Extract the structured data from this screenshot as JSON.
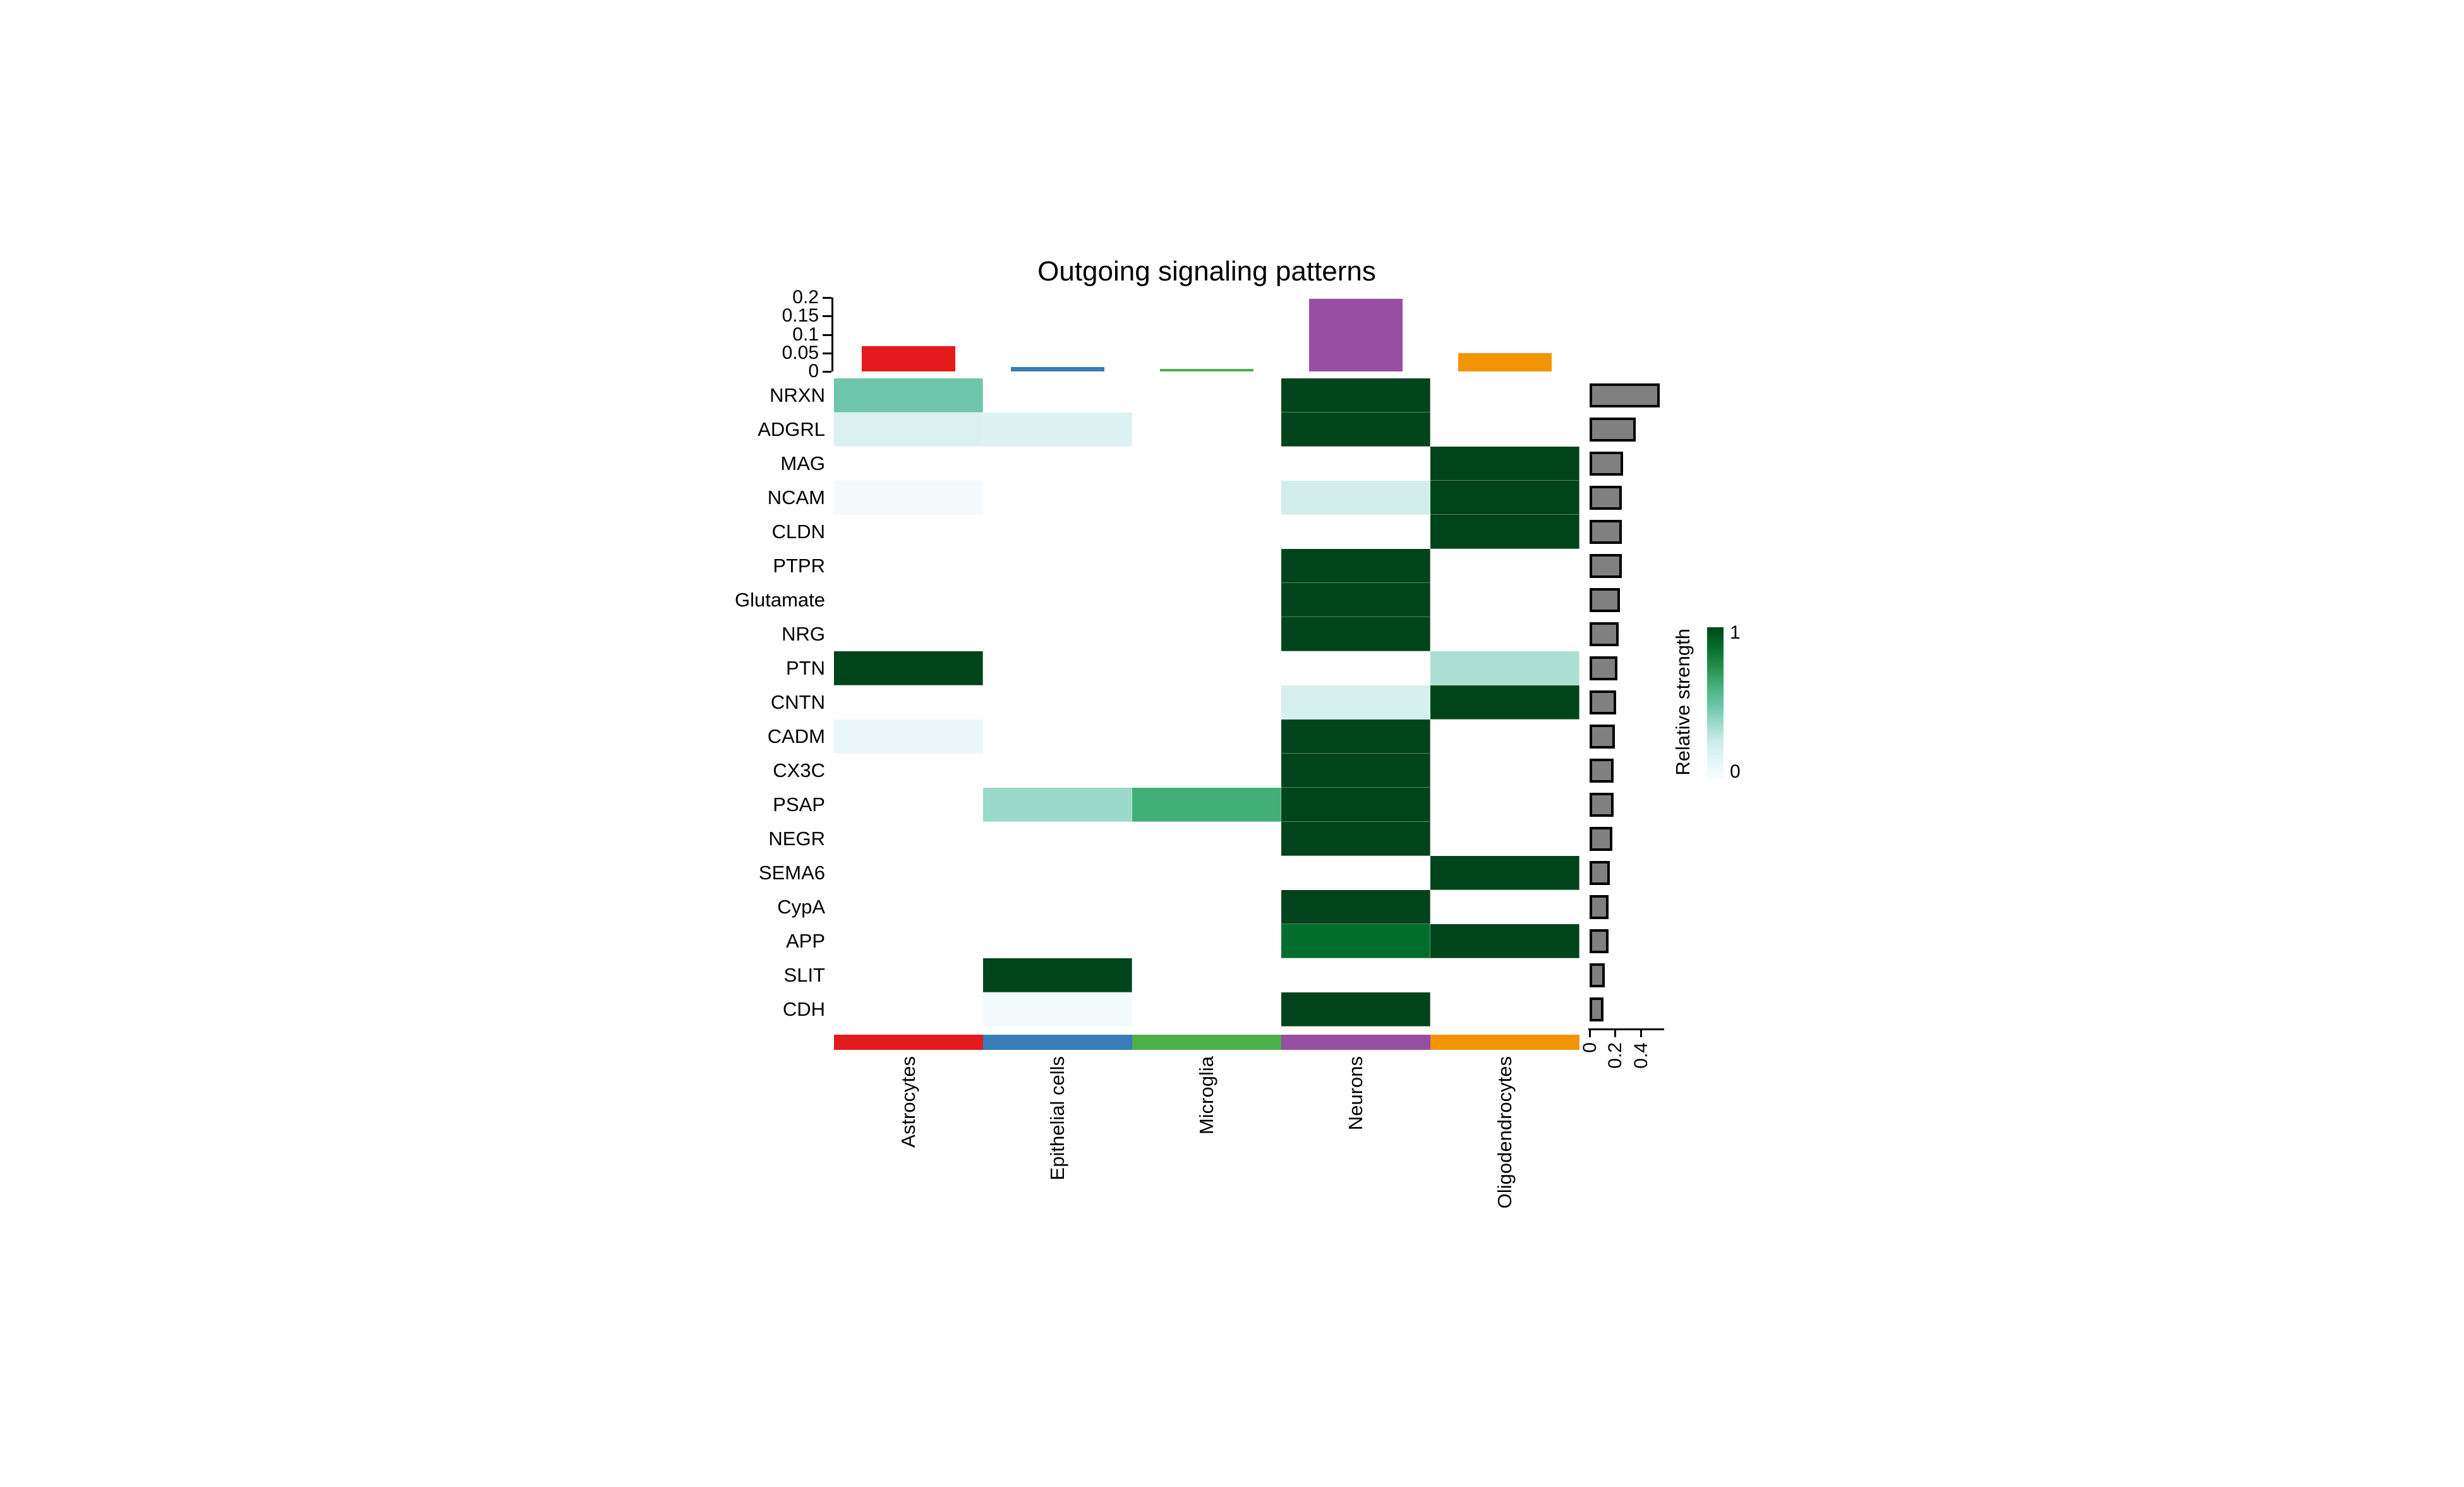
{
  "figure": {
    "title": "Outgoing signaling patterns"
  },
  "chart_data": {
    "type": "heatmap",
    "title": "Outgoing signaling patterns",
    "columns": [
      "Astrocytes",
      "Epithelial cells",
      "Microglia",
      "Neurons",
      "Oligodendrocytes"
    ],
    "column_colors": [
      "#E41A1C",
      "#377EB8",
      "#4DAF4A",
      "#984EA3",
      "#F29403"
    ],
    "rows": [
      "NRXN",
      "ADGRL",
      "MAG",
      "NCAM",
      "CLDN",
      "PTPR",
      "Glutamate",
      "NRG",
      "PTN",
      "CNTN",
      "CADM",
      "CX3C",
      "PSAP",
      "NEGR",
      "SEMA6",
      "CypA",
      "APP",
      "SLIT",
      "CDH"
    ],
    "matrix": [
      [
        0.48,
        0,
        0,
        1,
        0
      ],
      [
        0.18,
        0.17,
        0,
        1,
        0
      ],
      [
        0,
        0,
        0,
        0,
        1
      ],
      [
        0.04,
        0,
        0,
        0.22,
        1
      ],
      [
        0,
        0,
        0,
        0,
        1
      ],
      [
        0,
        0,
        0,
        1,
        0
      ],
      [
        0,
        0,
        0,
        1,
        0
      ],
      [
        0,
        0,
        0,
        1,
        0
      ],
      [
        1,
        0,
        0,
        0,
        0.33
      ],
      [
        0,
        0,
        0,
        0.2,
        1
      ],
      [
        0.1,
        0,
        0,
        1,
        0
      ],
      [
        0,
        0,
        0,
        1,
        0
      ],
      [
        0,
        0.37,
        0.62,
        1,
        0
      ],
      [
        0,
        0,
        0,
        1,
        0
      ],
      [
        0,
        0,
        0,
        0,
        1
      ],
      [
        0,
        0,
        0,
        1,
        0
      ],
      [
        0,
        0,
        0,
        0.87,
        1
      ],
      [
        0,
        1,
        0,
        0,
        0
      ],
      [
        0,
        0.05,
        0,
        1,
        0
      ]
    ],
    "top_bar_chart": {
      "values": [
        0.068,
        0.012,
        0.006,
        0.197,
        0.05
      ],
      "axis_ticks": [
        "0",
        "0.05",
        "0.1",
        "0.15",
        "0.2"
      ],
      "axis_tick_values": [
        0,
        0.05,
        0.1,
        0.15,
        0.2
      ]
    },
    "right_bar_chart": {
      "values": [
        0.55,
        0.36,
        0.26,
        0.25,
        0.25,
        0.25,
        0.24,
        0.23,
        0.22,
        0.21,
        0.2,
        0.19,
        0.19,
        0.18,
        0.16,
        0.15,
        0.15,
        0.12,
        0.11
      ],
      "axis_ticks": [
        "0",
        "0.2",
        "0.4"
      ],
      "axis_tick_values": [
        0,
        0.2,
        0.4
      ],
      "bar_fill": "#808080"
    },
    "legend": {
      "title": "Relative strength",
      "top_label": "1",
      "bottom_label": "0",
      "colormap": "BuGn"
    }
  }
}
